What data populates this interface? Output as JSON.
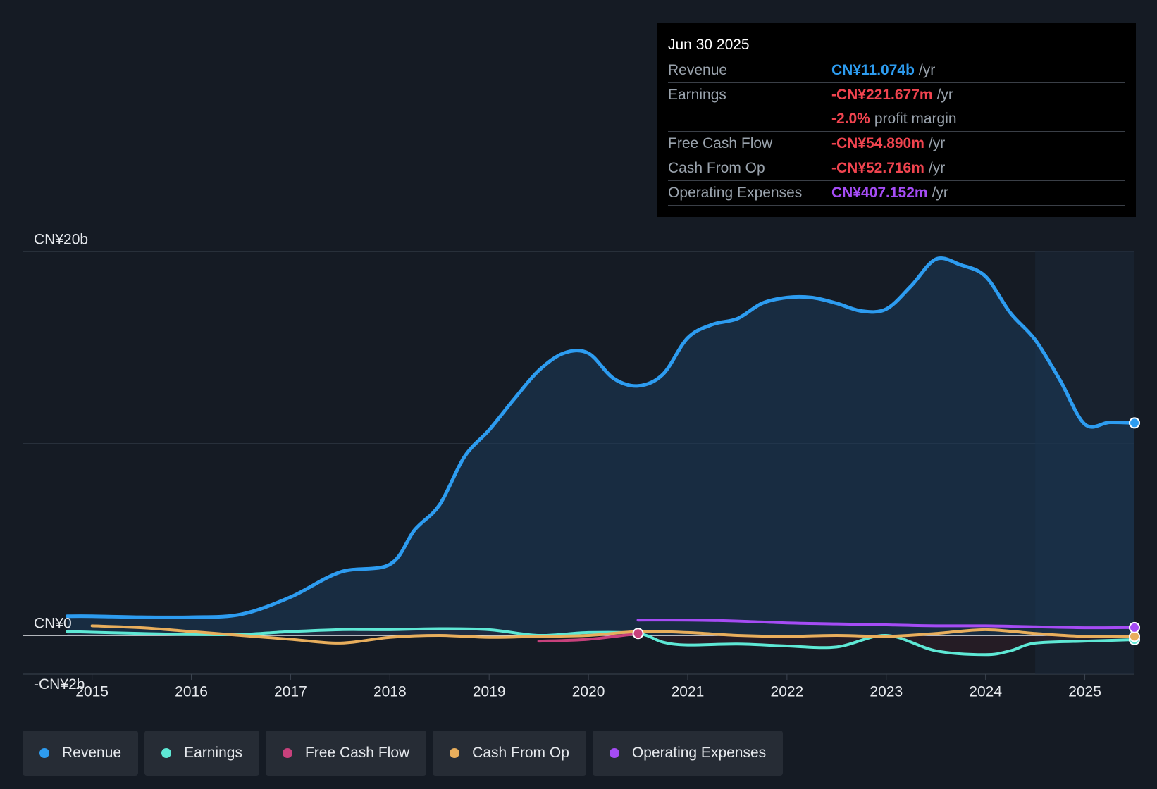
{
  "tooltip": {
    "date": "Jun 30 2025",
    "rows": [
      {
        "label": "Revenue",
        "value": "CN¥11.074b",
        "unit": "/yr",
        "color": "#2d9cf0"
      },
      {
        "label": "Earnings",
        "value": "-CN¥221.677m",
        "unit": "/yr",
        "color": "#f0444f"
      },
      {
        "label": "",
        "value": "-2.0%",
        "unit": "profit margin",
        "color": "#f0444f"
      },
      {
        "label": "Free Cash Flow",
        "value": "-CN¥54.890m",
        "unit": "/yr",
        "color": "#f0444f"
      },
      {
        "label": "Cash From Op",
        "value": "-CN¥52.716m",
        "unit": "/yr",
        "color": "#f0444f"
      },
      {
        "label": "Operating Expenses",
        "value": "CN¥407.152m",
        "unit": "/yr",
        "color": "#a54cf5"
      }
    ]
  },
  "legend": [
    {
      "label": "Revenue",
      "color": "#2d9cf0"
    },
    {
      "label": "Earnings",
      "color": "#5ee8d5"
    },
    {
      "label": "Free Cash Flow",
      "color": "#c8417c"
    },
    {
      "label": "Cash From Op",
      "color": "#e8ae5c"
    },
    {
      "label": "Operating Expenses",
      "color": "#a54cf5"
    }
  ],
  "chart_data": {
    "type": "area",
    "title": "",
    "ylabel": "",
    "xlabel": "",
    "ylim": [
      -2,
      20
    ],
    "xlim": [
      2014.3,
      2025.5
    ],
    "ytick_labels": [
      {
        "value": 20,
        "label": "CN¥20b"
      },
      {
        "value": 0,
        "label": "CN¥0"
      },
      {
        "value": -2,
        "label": "-CN¥2b"
      }
    ],
    "gridlines": [
      20,
      10
    ],
    "forecast_start": 2024.5,
    "xticks": [
      2015,
      2016,
      2017,
      2018,
      2019,
      2020,
      2021,
      2022,
      2023,
      2024,
      2025
    ],
    "xtick_labels": [
      "2015",
      "2016",
      "2017",
      "2018",
      "2019",
      "2020",
      "2021",
      "2022",
      "2023",
      "2024",
      "2025"
    ],
    "series": [
      {
        "name": "Revenue",
        "color": "#2d9cf0",
        "fill": true,
        "x": [
          2014.75,
          2015.0,
          2015.5,
          2016.0,
          2016.5,
          2017.0,
          2017.5,
          2018.0,
          2018.25,
          2018.5,
          2018.75,
          2019.0,
          2019.25,
          2019.5,
          2019.75,
          2020.0,
          2020.25,
          2020.5,
          2020.75,
          2021.0,
          2021.25,
          2021.5,
          2021.75,
          2022.0,
          2022.25,
          2022.5,
          2022.75,
          2023.0,
          2023.25,
          2023.5,
          2023.75,
          2024.0,
          2024.25,
          2024.5,
          2024.75,
          2025.0,
          2025.25,
          2025.5
        ],
        "values": [
          1.0,
          1.0,
          0.95,
          0.95,
          1.1,
          2.0,
          3.3,
          3.7,
          5.5,
          6.8,
          9.3,
          10.7,
          12.3,
          13.8,
          14.7,
          14.7,
          13.4,
          13.0,
          13.6,
          15.5,
          16.2,
          16.5,
          17.3,
          17.6,
          17.6,
          17.3,
          16.9,
          17.0,
          18.2,
          19.6,
          19.3,
          18.7,
          16.8,
          15.4,
          13.3,
          11.0,
          11.1,
          11.07
        ]
      },
      {
        "name": "Earnings",
        "color": "#5ee8d5",
        "x": [
          2014.75,
          2015.5,
          2016.0,
          2016.5,
          2017.0,
          2017.5,
          2018.0,
          2018.5,
          2019.0,
          2019.5,
          2020.0,
          2020.5,
          2020.75,
          2021.0,
          2021.5,
          2022.0,
          2022.5,
          2023.0,
          2023.5,
          2024.0,
          2024.25,
          2024.5,
          2025.0,
          2025.5
        ],
        "values": [
          0.2,
          0.1,
          0.05,
          0.05,
          0.2,
          0.3,
          0.3,
          0.35,
          0.3,
          0.0,
          0.15,
          0.1,
          -0.35,
          -0.5,
          -0.45,
          -0.55,
          -0.6,
          0.0,
          -0.8,
          -1.0,
          -0.8,
          -0.4,
          -0.3,
          -0.22
        ]
      },
      {
        "name": "Free Cash Flow",
        "color": "#c8417c",
        "x": [
          2019.5,
          2020.0,
          2020.5
        ],
        "values": [
          -0.3,
          -0.2,
          0.1
        ]
      },
      {
        "name": "Cash From Op",
        "color": "#e8ae5c",
        "x": [
          2015.0,
          2015.5,
          2016.0,
          2016.5,
          2017.0,
          2017.5,
          2018.0,
          2018.5,
          2019.0,
          2019.5,
          2020.0,
          2020.5,
          2021.0,
          2021.5,
          2022.0,
          2022.5,
          2023.0,
          2023.5,
          2024.0,
          2024.5,
          2025.0,
          2025.5
        ],
        "values": [
          0.5,
          0.4,
          0.2,
          0.0,
          -0.2,
          -0.4,
          -0.1,
          0.0,
          -0.1,
          -0.05,
          0.0,
          0.2,
          0.15,
          0.0,
          -0.05,
          0.0,
          -0.05,
          0.1,
          0.3,
          0.1,
          -0.05,
          -0.05
        ]
      },
      {
        "name": "Operating Expenses",
        "color": "#a54cf5",
        "x": [
          2020.5,
          2021.0,
          2021.5,
          2022.0,
          2022.5,
          2023.0,
          2023.5,
          2024.0,
          2024.5,
          2025.0,
          2025.5
        ],
        "values": [
          0.8,
          0.8,
          0.75,
          0.65,
          0.6,
          0.55,
          0.5,
          0.5,
          0.45,
          0.4,
          0.41
        ]
      }
    ]
  }
}
